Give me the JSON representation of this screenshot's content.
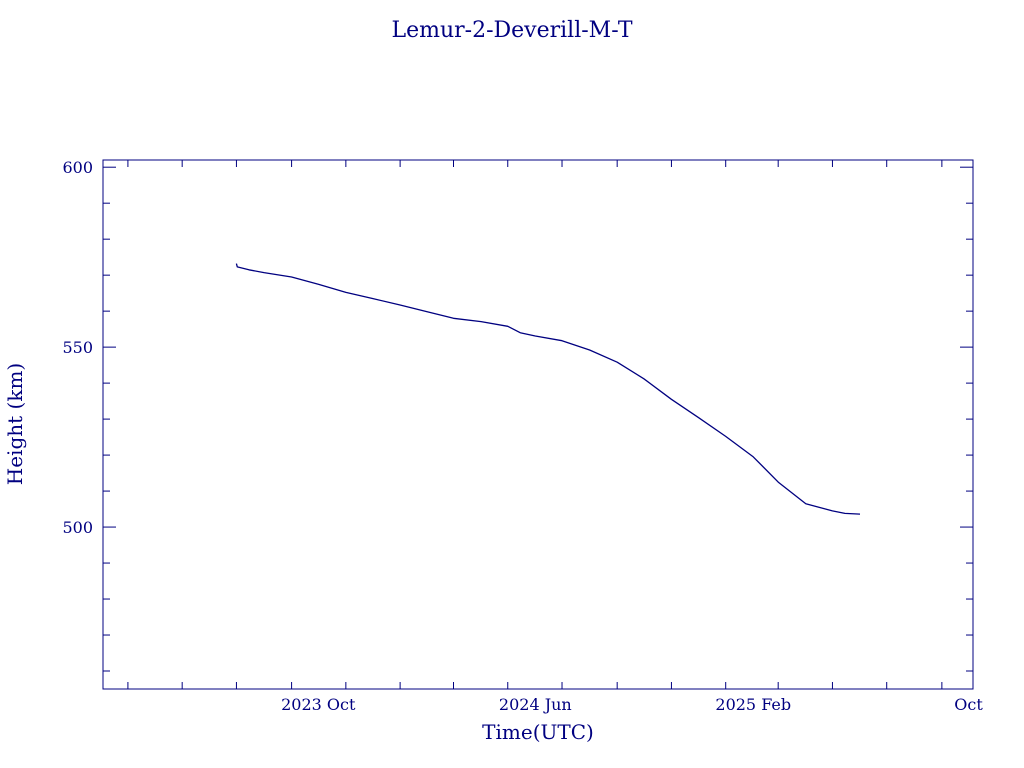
{
  "chart_data": {
    "type": "line",
    "title": "Lemur-2-Deverill-M-T",
    "xlabel": "Time(UTC)",
    "ylabel": "Height (km)",
    "y_ticks": [
      500,
      550,
      600
    ],
    "y_tick_labels": [
      "500",
      "550",
      "600"
    ],
    "ylim": [
      455,
      602
    ],
    "x_ticks": [
      "2023-10-01",
      "2024-06-01",
      "2025-02-01",
      "2025-10-01"
    ],
    "x_tick_labels": [
      "2023 Oct",
      "2024 Jun",
      "2025 Feb",
      "Oct"
    ],
    "xlim": [
      "2023-02-01",
      "2025-10-06"
    ],
    "grid": false,
    "color": "#000080",
    "series": [
      {
        "x": [
          "2023-07-01",
          "2023-07-02",
          "2023-07-15",
          "2023-08-01",
          "2023-09-01",
          "2023-10-01",
          "2023-11-01",
          "2023-12-01",
          "2024-01-01",
          "2024-02-01",
          "2024-03-01",
          "2024-04-01",
          "2024-05-01",
          "2024-05-15",
          "2024-06-01",
          "2024-07-01",
          "2024-08-01",
          "2024-09-01",
          "2024-10-01",
          "2024-11-01",
          "2024-12-01",
          "2025-01-01",
          "2025-02-01",
          "2025-03-01",
          "2025-04-01",
          "2025-05-01",
          "2025-05-15",
          "2025-06-01"
        ],
        "y": [
          573.2,
          572.3,
          571.5,
          570.7,
          569.5,
          567.5,
          565.2,
          563.5,
          561.7,
          559.8,
          558.0,
          557.1,
          555.8,
          554.0,
          553.1,
          551.8,
          549.2,
          545.8,
          541.2,
          535.5,
          530.5,
          525.2,
          519.5,
          512.5,
          506.5,
          504.5,
          503.8,
          503.6
        ]
      }
    ]
  }
}
